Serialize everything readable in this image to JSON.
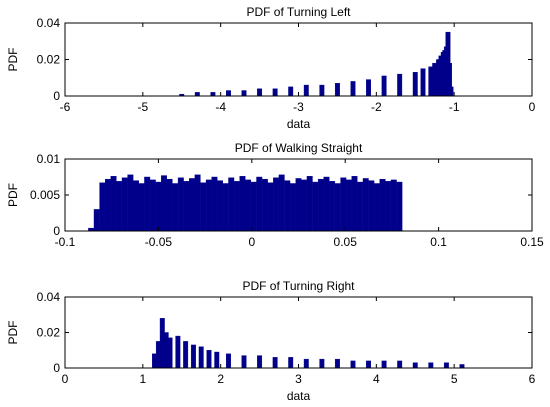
{
  "chart_data": [
    {
      "type": "bar",
      "title": "PDF of Turning Left",
      "xlabel": "data",
      "ylabel": "PDF",
      "xlim": [
        -6,
        0
      ],
      "ylim": [
        0,
        0.04
      ],
      "xticks": [
        "-6",
        "-5",
        "-4",
        "-3",
        "-2",
        "-1",
        "0"
      ],
      "yticks": [
        "0",
        "0.02",
        "0.04"
      ],
      "bar_color": "#00008b",
      "series": [
        {
          "x": [
            -4.5,
            -4.3,
            -4.1,
            -3.9,
            -3.7,
            -3.5,
            -3.3,
            -3.1,
            -2.9,
            -2.7,
            -2.5,
            -2.3,
            -2.1,
            -1.9,
            -1.7,
            -1.5,
            -1.4,
            -1.3,
            -1.25,
            -1.2,
            -1.17,
            -1.14,
            -1.12,
            -1.1,
            -1.08,
            -1.06,
            -1.04
          ],
          "values": [
            0.001,
            0.002,
            0.002,
            0.003,
            0.003,
            0.004,
            0.004,
            0.005,
            0.006,
            0.006,
            0.007,
            0.008,
            0.009,
            0.011,
            0.012,
            0.013,
            0.015,
            0.016,
            0.018,
            0.02,
            0.022,
            0.024,
            0.025,
            0.027,
            0.035,
            0.018,
            0.005
          ]
        }
      ]
    },
    {
      "type": "bar",
      "title": "PDF of Walking Straight",
      "xlabel": "",
      "ylabel": "PDF",
      "xlim": [
        -0.1,
        0.15
      ],
      "ylim": [
        0,
        0.01
      ],
      "xticks": [
        "-0.1",
        "-0.05",
        "0",
        "0.05",
        "0.1",
        "0.15"
      ],
      "yticks": [
        "0",
        "0.005",
        "0.01"
      ],
      "bar_color": "#00008b",
      "series": [
        {
          "x": [
            -0.086,
            -0.083,
            -0.08,
            -0.077,
            -0.074,
            -0.071,
            -0.068,
            -0.065,
            -0.062,
            -0.059,
            -0.056,
            -0.053,
            -0.05,
            -0.047,
            -0.044,
            -0.041,
            -0.038,
            -0.035,
            -0.032,
            -0.029,
            -0.026,
            -0.023,
            -0.02,
            -0.017,
            -0.014,
            -0.011,
            -0.008,
            -0.005,
            -0.002,
            0.001,
            0.004,
            0.007,
            0.01,
            0.013,
            0.016,
            0.019,
            0.022,
            0.025,
            0.028,
            0.031,
            0.034,
            0.037,
            0.04,
            0.043,
            0.046,
            0.049,
            0.052,
            0.055,
            0.058,
            0.061,
            0.064,
            0.067,
            0.07,
            0.073,
            0.076,
            0.079
          ],
          "values": [
            0.0004,
            0.003,
            0.0067,
            0.0072,
            0.0076,
            0.0069,
            0.0074,
            0.0078,
            0.007,
            0.0066,
            0.0075,
            0.0071,
            0.0068,
            0.0077,
            0.0072,
            0.0066,
            0.0074,
            0.0069,
            0.0073,
            0.0078,
            0.0067,
            0.0071,
            0.0075,
            0.007,
            0.0066,
            0.0074,
            0.0069,
            0.0076,
            0.0071,
            0.0068,
            0.0075,
            0.0072,
            0.0067,
            0.0074,
            0.0078,
            0.007,
            0.0066,
            0.0073,
            0.0071,
            0.0076,
            0.0068,
            0.0072,
            0.0075,
            0.0069,
            0.0066,
            0.0074,
            0.0071,
            0.0076,
            0.0068,
            0.0073,
            0.007,
            0.0066,
            0.0072,
            0.0069,
            0.0071,
            0.0068
          ]
        }
      ]
    },
    {
      "type": "bar",
      "title": "PDF of Turning Right",
      "xlabel": "data",
      "ylabel": "PDF",
      "xlim": [
        0,
        6
      ],
      "ylim": [
        0,
        0.04
      ],
      "xticks": [
        "0",
        "1",
        "2",
        "3",
        "4",
        "5",
        "6"
      ],
      "yticks": [
        "0",
        "0.02",
        "0.04"
      ],
      "bar_color": "#00008b",
      "series": [
        {
          "x": [
            1.15,
            1.2,
            1.25,
            1.3,
            1.35,
            1.45,
            1.55,
            1.65,
            1.75,
            1.85,
            1.95,
            2.1,
            2.3,
            2.5,
            2.7,
            2.9,
            3.1,
            3.3,
            3.5,
            3.7,
            3.9,
            4.1,
            4.3,
            4.5,
            4.7,
            4.9,
            5.1
          ],
          "values": [
            0.008,
            0.015,
            0.028,
            0.02,
            0.017,
            0.018,
            0.015,
            0.013,
            0.012,
            0.01,
            0.009,
            0.008,
            0.007,
            0.007,
            0.006,
            0.006,
            0.005,
            0.005,
            0.005,
            0.004,
            0.004,
            0.004,
            0.004,
            0.003,
            0.003,
            0.003,
            0.002
          ]
        }
      ]
    }
  ]
}
